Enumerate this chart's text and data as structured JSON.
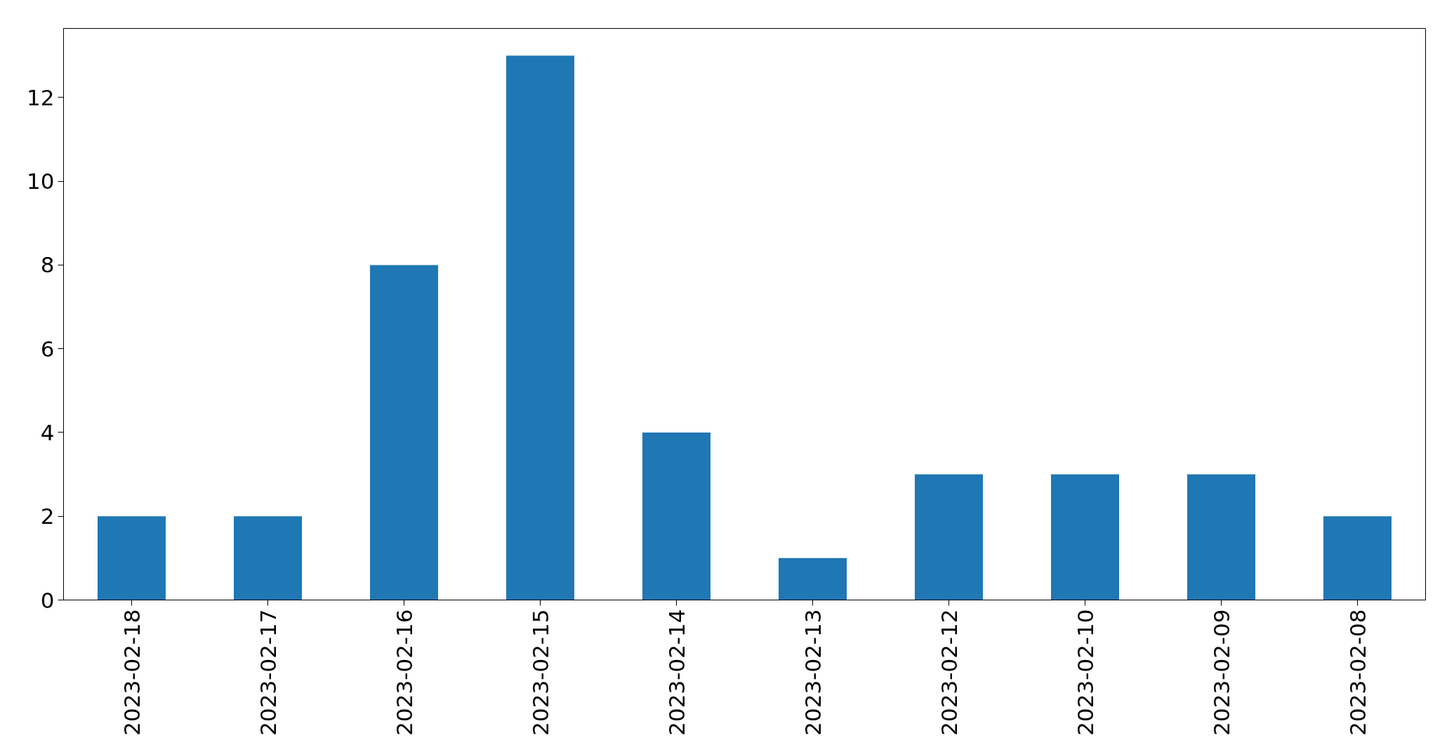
{
  "chart_data": {
    "type": "bar",
    "categories": [
      "2023-02-18",
      "2023-02-17",
      "2023-02-16",
      "2023-02-15",
      "2023-02-14",
      "2023-02-13",
      "2023-02-12",
      "2023-02-10",
      "2023-02-09",
      "2023-02-08"
    ],
    "values": [
      2,
      2,
      8,
      13,
      4,
      1,
      3,
      3,
      3,
      2
    ],
    "color": "#1f77b4",
    "ylim": [
      0,
      13.65
    ],
    "yticks": [
      0,
      2,
      4,
      6,
      8,
      10,
      12
    ]
  }
}
